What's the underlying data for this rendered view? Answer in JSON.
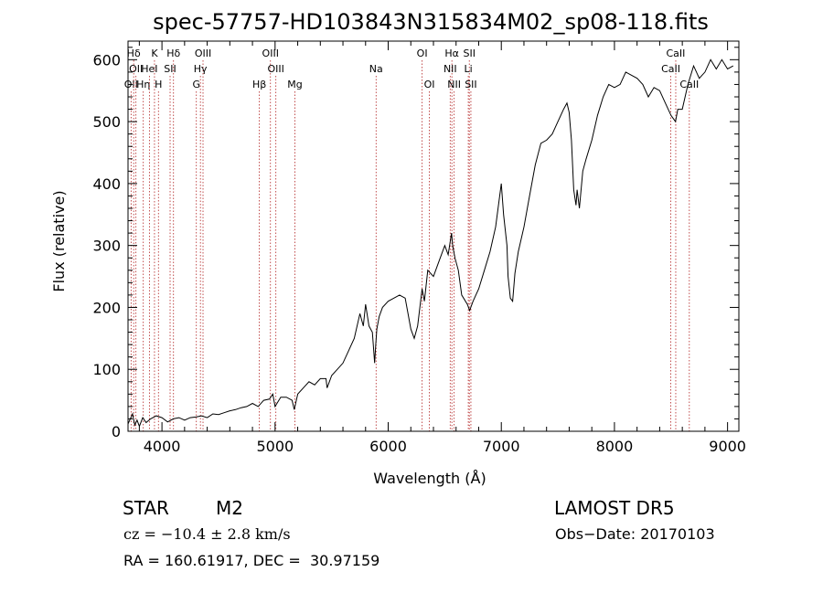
{
  "chart_data": {
    "type": "line",
    "title": "spec-57757-HD103843N315834M02_sp08-118.fits",
    "xlabel": "Wavelength (Å)",
    "ylabel": "Flux (relative)",
    "xlim": [
      3700,
      9100
    ],
    "ylim": [
      0,
      630
    ],
    "x_ticks": [
      4000,
      5000,
      6000,
      7000,
      8000,
      9000
    ],
    "y_ticks": [
      0,
      100,
      200,
      300,
      400,
      500,
      600
    ],
    "grid": false,
    "series": [
      {
        "x": [
          3700,
          3720,
          3740,
          3760,
          3780,
          3800,
          3830,
          3860,
          3900,
          3950,
          4000,
          4050,
          4100,
          4150,
          4200,
          4250,
          4300,
          4350,
          4400,
          4450,
          4500,
          4550,
          4600,
          4650,
          4700,
          4750,
          4800,
          4850,
          4900,
          4950,
          4980,
          5000,
          5050,
          5100,
          5150,
          5170,
          5200,
          5250,
          5300,
          5350,
          5400,
          5450,
          5460,
          5500,
          5550,
          5600,
          5650,
          5700,
          5750,
          5780,
          5800,
          5830,
          5860,
          5880,
          5890,
          5900,
          5920,
          5950,
          6000,
          6050,
          6100,
          6150,
          6200,
          6230,
          6260,
          6300,
          6320,
          6350,
          6400,
          6450,
          6500,
          6530,
          6560,
          6570,
          6590,
          6620,
          6650,
          6700,
          6720,
          6750,
          6800,
          6850,
          6900,
          6950,
          7000,
          7020,
          7050,
          7060,
          7080,
          7100,
          7120,
          7150,
          7200,
          7250,
          7300,
          7350,
          7400,
          7450,
          7500,
          7550,
          7580,
          7600,
          7620,
          7640,
          7660,
          7670,
          7690,
          7720,
          7750,
          7800,
          7850,
          7900,
          7950,
          8000,
          8050,
          8100,
          8150,
          8200,
          8250,
          8300,
          8350,
          8400,
          8450,
          8500,
          8540,
          8560,
          8600,
          8650,
          8700,
          8750,
          8800,
          8850,
          8900,
          8950,
          9000,
          9050
        ],
        "y": [
          12,
          20,
          28,
          10,
          18,
          8,
          22,
          14,
          20,
          25,
          22,
          15,
          20,
          22,
          18,
          22,
          23,
          25,
          22,
          28,
          27,
          30,
          33,
          35,
          38,
          40,
          45,
          40,
          50,
          52,
          60,
          40,
          55,
          55,
          50,
          35,
          60,
          70,
          80,
          75,
          85,
          85,
          70,
          90,
          100,
          110,
          130,
          150,
          190,
          170,
          205,
          170,
          160,
          110,
          140,
          165,
          185,
          200,
          210,
          215,
          220,
          215,
          165,
          150,
          170,
          230,
          210,
          260,
          250,
          275,
          300,
          285,
          320,
          300,
          280,
          260,
          220,
          205,
          195,
          210,
          230,
          260,
          290,
          330,
          400,
          350,
          300,
          250,
          215,
          210,
          255,
          290,
          330,
          380,
          430,
          465,
          470,
          480,
          500,
          520,
          530,
          515,
          470,
          390,
          365,
          390,
          360,
          420,
          440,
          470,
          510,
          540,
          560,
          555,
          560,
          580,
          575,
          570,
          560,
          540,
          555,
          550,
          530,
          510,
          500,
          520,
          520,
          560,
          590,
          570,
          580,
          600,
          585,
          600,
          585,
          590
        ],
        "color": "#000000"
      }
    ],
    "line_markers": [
      {
        "label": "OII",
        "wavelength": 3727,
        "row": 2
      },
      {
        "label": "Hδ",
        "wavelength": 3750,
        "row": 0
      },
      {
        "label": "OII",
        "wavelength": 3770,
        "row": 1
      },
      {
        "label": "Hη",
        "wavelength": 3835,
        "row": 2
      },
      {
        "label": "K",
        "wavelength": 3934,
        "row": 0
      },
      {
        "label": "HeI",
        "wavelength": 3889,
        "row": 1
      },
      {
        "label": "H",
        "wavelength": 3969,
        "row": 2
      },
      {
        "label": "SII",
        "wavelength": 4072,
        "row": 1
      },
      {
        "label": "Hδ",
        "wavelength": 4102,
        "row": 0
      },
      {
        "label": "OIII",
        "wavelength": 4363,
        "row": 0
      },
      {
        "label": "Hγ",
        "wavelength": 4340,
        "row": 1
      },
      {
        "label": "G",
        "wavelength": 4304,
        "row": 2
      },
      {
        "label": "Hβ",
        "wavelength": 4861,
        "row": 2
      },
      {
        "label": "OIII",
        "wavelength": 4959,
        "row": 0
      },
      {
        "label": "OIII",
        "wavelength": 5007,
        "row": 1
      },
      {
        "label": "Mg",
        "wavelength": 5175,
        "row": 2
      },
      {
        "label": "Na",
        "wavelength": 5893,
        "row": 1
      },
      {
        "label": "OI",
        "wavelength": 6300,
        "row": 0
      },
      {
        "label": "OI",
        "wavelength": 6364,
        "row": 2
      },
      {
        "label": "Hα",
        "wavelength": 6563,
        "row": 0
      },
      {
        "label": "NII",
        "wavelength": 6548,
        "row": 1
      },
      {
        "label": "NII",
        "wavelength": 6583,
        "row": 2
      },
      {
        "label": "SII",
        "wavelength": 6717,
        "row": 0
      },
      {
        "label": "Li",
        "wavelength": 6708,
        "row": 1
      },
      {
        "label": "SII",
        "wavelength": 6731,
        "row": 2
      },
      {
        "label": "CaII",
        "wavelength": 8542,
        "row": 0
      },
      {
        "label": "CaII",
        "wavelength": 8498,
        "row": 1
      },
      {
        "label": "CaII",
        "wavelength": 8662,
        "row": 2
      }
    ],
    "marker_color": "#b22222",
    "frame_color": "#000000"
  },
  "info": {
    "class": "STAR",
    "subclass": "M2",
    "survey": "LAMOST DR5",
    "cz": "cz = −10.4 ± 2.8 km/s",
    "obs_date": "Obs−Date: 20170103",
    "coords": "RA = 160.61917, DEC =  30.97159"
  }
}
